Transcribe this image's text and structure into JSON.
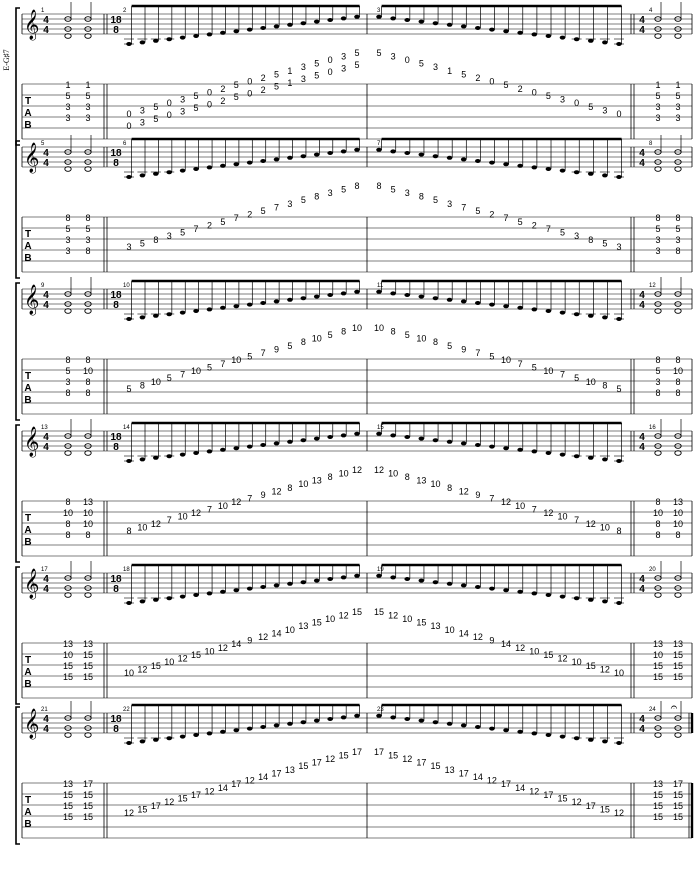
{
  "chord_label": "E-G♯7",
  "tab_letters": [
    "T",
    "A",
    "B"
  ],
  "systems": [
    {
      "left": {
        "num": "1",
        "ts": [
          "4",
          "4"
        ],
        "frets": [
          [
            "1",
            "1"
          ],
          [
            "5",
            "5"
          ],
          [
            "3",
            "3"
          ],
          [
            "3",
            "3"
          ]
        ]
      },
      "m1": {
        "num": "2",
        "frets": [
          [
            "0",
            "3",
            "5",
            "0",
            "3",
            "5",
            "0",
            "2",
            "5",
            "0",
            "2",
            "5",
            "1",
            "3",
            "5",
            "0",
            "3",
            "5"
          ],
          [
            "0",
            "3",
            "5",
            "0",
            "3",
            "5",
            "0",
            "2",
            "5",
            "0",
            "2",
            "5",
            "1",
            "3",
            "5",
            "0",
            "3",
            "5"
          ]
        ]
      },
      "m2": {
        "num": "3",
        "frets": [
          [
            "5",
            "3",
            "0",
            "5",
            "3",
            "1",
            "5",
            "2",
            "0",
            "5",
            "2",
            "0",
            "5",
            "3",
            "0",
            "5",
            "3",
            "0"
          ]
        ]
      },
      "right": {
        "num": "4",
        "ts": [
          "4",
          "4"
        ],
        "frets": [
          [
            "1",
            "1"
          ],
          [
            "5",
            "5"
          ],
          [
            "3",
            "3"
          ],
          [
            "3",
            "3"
          ]
        ]
      }
    },
    {
      "left": {
        "num": "5",
        "ts": [
          "4",
          "4"
        ],
        "frets": [
          [
            "8",
            "8"
          ],
          [
            "5",
            "5"
          ],
          [
            "3",
            "3"
          ],
          [
            "3",
            "8"
          ]
        ]
      },
      "m1": {
        "num": "6",
        "frets": [
          [
            "3",
            "5",
            "8",
            "3",
            "5",
            "7",
            "2",
            "5",
            "7",
            "2",
            "5",
            "7",
            "3",
            "5",
            "8",
            "3",
            "5",
            "8"
          ]
        ]
      },
      "m2": {
        "num": "7",
        "frets": [
          [
            "8",
            "5",
            "3",
            "8",
            "5",
            "3",
            "7",
            "5",
            "2",
            "7",
            "5",
            "2",
            "7",
            "5",
            "3",
            "8",
            "5",
            "3"
          ]
        ]
      },
      "right": {
        "num": "8",
        "ts": [
          "4",
          "4"
        ],
        "frets": [
          [
            "8",
            "8"
          ],
          [
            "5",
            "5"
          ],
          [
            "3",
            "3"
          ],
          [
            "3",
            "8"
          ]
        ]
      }
    },
    {
      "left": {
        "num": "9",
        "ts": [
          "4",
          "4"
        ],
        "frets": [
          [
            "8",
            "8"
          ],
          [
            "5",
            "10"
          ],
          [
            "3",
            "8"
          ],
          [
            "8",
            "8"
          ]
        ]
      },
      "m1": {
        "num": "10",
        "frets": [
          [
            "5",
            "8",
            "10",
            "5",
            "7",
            "10",
            "5",
            "7",
            "10",
            "5",
            "7",
            "9",
            "5",
            "8",
            "10",
            "5",
            "8",
            "10"
          ]
        ]
      },
      "m2": {
        "num": "11",
        "frets": [
          [
            "10",
            "8",
            "5",
            "10",
            "8",
            "5",
            "9",
            "7",
            "5",
            "10",
            "7",
            "5",
            "10",
            "7",
            "5",
            "10",
            "8",
            "5"
          ]
        ]
      },
      "right": {
        "num": "12",
        "ts": [
          "4",
          "4"
        ],
        "frets": [
          [
            "8",
            "8"
          ],
          [
            "5",
            "10"
          ],
          [
            "3",
            "8"
          ],
          [
            "8",
            "8"
          ]
        ]
      }
    },
    {
      "left": {
        "num": "13",
        "ts": [
          "4",
          "4"
        ],
        "frets": [
          [
            "8",
            "13"
          ],
          [
            "10",
            "10"
          ],
          [
            "8",
            "10"
          ],
          [
            "8",
            "8"
          ]
        ]
      },
      "m1": {
        "num": "14",
        "frets": [
          [
            "8",
            "10",
            "12",
            "7",
            "10",
            "12",
            "7",
            "10",
            "12",
            "7",
            "9",
            "12",
            "8",
            "10",
            "13",
            "8",
            "10",
            "12"
          ]
        ]
      },
      "m2": {
        "num": "15",
        "frets": [
          [
            "12",
            "10",
            "8",
            "13",
            "10",
            "8",
            "12",
            "9",
            "7",
            "12",
            "10",
            "7",
            "12",
            "10",
            "7",
            "12",
            "10",
            "8"
          ]
        ]
      },
      "right": {
        "num": "16",
        "ts": [
          "4",
          "4"
        ],
        "frets": [
          [
            "8",
            "13"
          ],
          [
            "10",
            "10"
          ],
          [
            "8",
            "10"
          ],
          [
            "8",
            "8"
          ]
        ]
      }
    },
    {
      "left": {
        "num": "17",
        "ts": [
          "4",
          "4"
        ],
        "frets": [
          [
            "13",
            "13"
          ],
          [
            "10",
            "15"
          ],
          [
            "15",
            "15"
          ],
          [
            "15",
            "15"
          ]
        ]
      },
      "m1": {
        "num": "18",
        "frets": [
          [
            "10",
            "12",
            "15",
            "10",
            "12",
            "15",
            "10",
            "12",
            "14",
            "9",
            "12",
            "14",
            "10",
            "13",
            "15",
            "10",
            "12",
            "15"
          ]
        ]
      },
      "m2": {
        "num": "19",
        "frets": [
          [
            "15",
            "12",
            "10",
            "15",
            "13",
            "10",
            "14",
            "12",
            "9",
            "14",
            "12",
            "10",
            "15",
            "12",
            "10",
            "15",
            "12",
            "10"
          ]
        ]
      },
      "right": {
        "num": "20",
        "ts": [
          "4",
          "4"
        ],
        "frets": [
          [
            "13",
            "13"
          ],
          [
            "10",
            "15"
          ],
          [
            "15",
            "15"
          ],
          [
            "15",
            "15"
          ]
        ]
      }
    },
    {
      "left": {
        "num": "21",
        "ts": [
          "4",
          "4"
        ],
        "frets": [
          [
            "13",
            "17"
          ],
          [
            "15",
            "15"
          ],
          [
            "15",
            "15"
          ],
          [
            "15",
            "15"
          ]
        ]
      },
      "m1": {
        "num": "22",
        "frets": [
          [
            "12",
            "15",
            "17",
            "12",
            "15",
            "17",
            "12",
            "14",
            "17",
            "12",
            "14",
            "17",
            "13",
            "15",
            "17",
            "12",
            "15",
            "17"
          ]
        ]
      },
      "m2": {
        "num": "23",
        "frets": [
          [
            "17",
            "15",
            "12",
            "17",
            "15",
            "13",
            "17",
            "14",
            "12",
            "17",
            "14",
            "12",
            "17",
            "15",
            "12",
            "17",
            "15",
            "12"
          ]
        ]
      },
      "right": {
        "num": "24",
        "ts": [
          "4",
          "4"
        ],
        "frets": [
          [
            "13",
            "17"
          ],
          [
            "15",
            "15"
          ],
          [
            "15",
            "15"
          ],
          [
            "15",
            "15"
          ]
        ]
      }
    }
  ],
  "meter_18_8": [
    "18",
    "8"
  ]
}
